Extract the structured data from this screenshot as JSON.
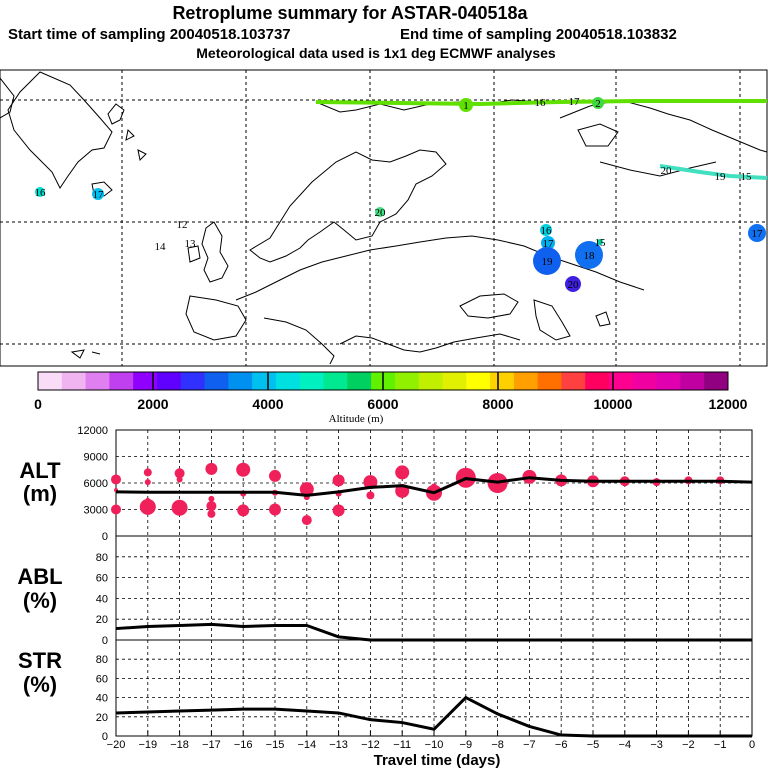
{
  "header": {
    "title": "Retroplume summary for ASTAR-040518a",
    "line2_start": "Start time of sampling 20040518.103737",
    "line2_end": "End time of sampling 20040518.103832",
    "line3": "Meteorological data used is 1x1 deg ECMWF analyses"
  },
  "colorbar": {
    "ticks": [
      "0",
      "2000",
      "4000",
      "6000",
      "8000",
      "10000",
      "12000"
    ],
    "label": "Altitude (m)",
    "colors": [
      "#f8dcf8",
      "#f0b4f0",
      "#e080f0",
      "#c040f0",
      "#9000ff",
      "#6000ff",
      "#3030ff",
      "#1060f0",
      "#0090f0",
      "#00c0f0",
      "#00e0e0",
      "#00f0c0",
      "#00e890",
      "#00d060",
      "#60f000",
      "#90f000",
      "#c0f000",
      "#e0f000",
      "#ffff00",
      "#ffd000",
      "#ffa000",
      "#ff7000",
      "#ff4040",
      "#ff0060",
      "#ff0090",
      "#f000a0",
      "#e000b0",
      "#c000a0",
      "#900080"
    ]
  },
  "map": {
    "markers": [
      {
        "label": "1",
        "color": "#60e000",
        "size": 7
      },
      {
        "label": "2",
        "color": "#40d840",
        "size": 6
      },
      {
        "label": "16",
        "color": "#00e0d0",
        "size": 5
      },
      {
        "label": "17",
        "color": "#00c0f0",
        "size": 6
      },
      {
        "label": "16",
        "color": "#00e0c0",
        "size": 0
      },
      {
        "label": "17",
        "color": "#00d0e0",
        "size": 0
      },
      {
        "label": "12",
        "color": "#00d0a0",
        "size": 0
      },
      {
        "label": "14",
        "color": "#00d0a0",
        "size": 0
      },
      {
        "label": "13",
        "color": "#00d0c0",
        "size": 0
      },
      {
        "label": "20",
        "color": "#40e080",
        "size": 5
      },
      {
        "label": "16",
        "color": "#00d0e0",
        "size": 6
      },
      {
        "label": "17",
        "color": "#00b0f0",
        "size": 7
      },
      {
        "label": "19",
        "color": "#1060f0",
        "size": 14
      },
      {
        "label": "18",
        "color": "#1070f0",
        "size": 14
      },
      {
        "label": "15",
        "color": "#00d0a0",
        "size": 3
      },
      {
        "label": "20",
        "color": "#4020e0",
        "size": 8
      },
      {
        "label": "20",
        "color": "#00e0c0",
        "size": 0
      },
      {
        "label": "19",
        "color": "#00d0d0",
        "size": 0
      },
      {
        "label": "15",
        "color": "#00d0d0",
        "size": 0
      },
      {
        "label": "17",
        "color": "#1070f0",
        "size": 9
      }
    ]
  },
  "xaxis": {
    "ticks": [
      "−20",
      "−19",
      "−18",
      "−17",
      "−16",
      "−15",
      "−14",
      "−13",
      "−12",
      "−11",
      "−10",
      "−9",
      "−8",
      "−7",
      "−6",
      "−5",
      "−4",
      "−3",
      "−2",
      "−1",
      "0"
    ],
    "label": "Travel time (days)"
  },
  "panels": {
    "alt": {
      "line1": "ALT",
      "line2": "(m)",
      "ticks": [
        "0",
        "3000",
        "6000",
        "9000",
        "12000"
      ]
    },
    "abl": {
      "line1": "ABL",
      "line2": "(%)",
      "ticks": [
        "0",
        "20",
        "40",
        "60",
        "80"
      ]
    },
    "str": {
      "line1": "STR",
      "line2": "(%)",
      "ticks": [
        "0",
        "20",
        "40",
        "60",
        "80"
      ]
    }
  },
  "chart_data": [
    {
      "type": "line",
      "title": "ALT (m)",
      "x": [
        -20,
        -19,
        -18,
        -17,
        -16,
        -15,
        -14,
        -13,
        -12,
        -11,
        -10,
        -9,
        -8,
        -7,
        -6,
        -5,
        -4,
        -3,
        -2,
        -1,
        0
      ],
      "series": [
        {
          "name": "mean altitude",
          "values": [
            5000,
            4950,
            4950,
            4950,
            4950,
            4950,
            4600,
            5000,
            5500,
            5700,
            4900,
            6500,
            6100,
            6600,
            6300,
            6200,
            6200,
            6200,
            6200,
            6200,
            6100
          ]
        }
      ],
      "scatter": [
        {
          "x": -20,
          "y": 6400,
          "size": 5
        },
        {
          "x": -20,
          "y": 5200,
          "size": 2
        },
        {
          "x": -20,
          "y": 3000,
          "size": 5
        },
        {
          "x": -19,
          "y": 7200,
          "size": 4
        },
        {
          "x": -19,
          "y": 6100,
          "size": 3
        },
        {
          "x": -19,
          "y": 4100,
          "size": 2
        },
        {
          "x": -19,
          "y": 3300,
          "size": 8
        },
        {
          "x": -18,
          "y": 7100,
          "size": 5
        },
        {
          "x": -18,
          "y": 6400,
          "size": 3
        },
        {
          "x": -18,
          "y": 3200,
          "size": 8
        },
        {
          "x": -17,
          "y": 7600,
          "size": 6
        },
        {
          "x": -17,
          "y": 4200,
          "size": 3
        },
        {
          "x": -17,
          "y": 3400,
          "size": 5
        },
        {
          "x": -17,
          "y": 2500,
          "size": 4
        },
        {
          "x": -16,
          "y": 7500,
          "size": 7
        },
        {
          "x": -16,
          "y": 4800,
          "size": 3
        },
        {
          "x": -16,
          "y": 2900,
          "size": 6
        },
        {
          "x": -15,
          "y": 6800,
          "size": 6
        },
        {
          "x": -15,
          "y": 4900,
          "size": 3
        },
        {
          "x": -15,
          "y": 3000,
          "size": 6
        },
        {
          "x": -14,
          "y": 5300,
          "size": 7
        },
        {
          "x": -14,
          "y": 4400,
          "size": 3
        },
        {
          "x": -14,
          "y": 1800,
          "size": 5
        },
        {
          "x": -13,
          "y": 6300,
          "size": 6
        },
        {
          "x": -13,
          "y": 4800,
          "size": 3
        },
        {
          "x": -13,
          "y": 2900,
          "size": 6
        },
        {
          "x": -12,
          "y": 6100,
          "size": 7
        },
        {
          "x": -12,
          "y": 4600,
          "size": 4
        },
        {
          "x": -11,
          "y": 7200,
          "size": 7
        },
        {
          "x": -11,
          "y": 5100,
          "size": 7
        },
        {
          "x": -10,
          "y": 4900,
          "size": 8
        },
        {
          "x": -10,
          "y": 5600,
          "size": 3
        },
        {
          "x": -9,
          "y": 6600,
          "size": 10
        },
        {
          "x": -8,
          "y": 6000,
          "size": 10
        },
        {
          "x": -7,
          "y": 6700,
          "size": 7
        },
        {
          "x": -6,
          "y": 6300,
          "size": 6
        },
        {
          "x": -5,
          "y": 6200,
          "size": 6
        },
        {
          "x": -4,
          "y": 6200,
          "size": 5
        },
        {
          "x": -3,
          "y": 6100,
          "size": 4
        },
        {
          "x": -2,
          "y": 6300,
          "size": 4
        },
        {
          "x": -1,
          "y": 6300,
          "size": 4
        }
      ],
      "xlabel": "Travel time (days)",
      "ylabel": "ALT (m)",
      "xlim": [
        -20,
        0
      ],
      "ylim": [
        0,
        12000
      ]
    },
    {
      "type": "line",
      "title": "ABL (%)",
      "x": [
        -20,
        -19,
        -18,
        -17,
        -16,
        -15,
        -14,
        -13,
        -12,
        -11,
        -10,
        -9,
        -8,
        -7,
        -6,
        -5,
        -4,
        -3,
        -2,
        -1,
        0
      ],
      "series": [
        {
          "name": "ABL fraction",
          "values": [
            11,
            13,
            14,
            15,
            13,
            14,
            14,
            3,
            0,
            0,
            0,
            0,
            0,
            0,
            0,
            0,
            0,
            0,
            0,
            0,
            0
          ]
        }
      ],
      "xlabel": "Travel time (days)",
      "ylabel": "ABL (%)",
      "xlim": [
        -20,
        0
      ],
      "ylim": [
        0,
        100
      ]
    },
    {
      "type": "line",
      "title": "STR (%)",
      "x": [
        -20,
        -19,
        -18,
        -17,
        -16,
        -15,
        -14,
        -13,
        -12,
        -11,
        -10,
        -9,
        -8,
        -7,
        -6,
        -5,
        -4,
        -3,
        -2,
        -1,
        0
      ],
      "series": [
        {
          "name": "stratospheric fraction",
          "values": [
            24,
            25,
            26,
            27,
            28,
            28,
            26,
            24,
            17,
            14,
            7,
            40,
            23,
            10,
            1,
            0,
            0,
            0,
            0,
            0,
            0
          ]
        }
      ],
      "xlabel": "Travel time (days)",
      "ylabel": "STR (%)",
      "xlim": [
        -20,
        0
      ],
      "ylim": [
        0,
        100
      ]
    }
  ]
}
